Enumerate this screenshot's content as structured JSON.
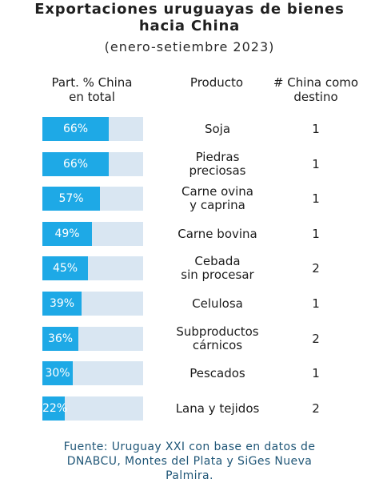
{
  "title_line1": "Exportaciones uruguayas de bienes",
  "title_line2": "hacia China",
  "subtitle": "(enero-setiembre 2023)",
  "headers": {
    "share_line1": "Part. % China",
    "share_line2": "en total",
    "product": "Producto",
    "count_line1": "# China como",
    "count_line2": "destino"
  },
  "colors": {
    "bar_fill": "#1ea9e6",
    "bar_track": "#d9e6f2",
    "source_text": "#1f5677"
  },
  "chart_data": {
    "type": "bar",
    "orientation": "horizontal",
    "xlim": [
      0,
      100
    ],
    "rows": [
      {
        "pct": 66,
        "pct_label": "66%",
        "product": [
          "Soja"
        ],
        "rank": "1"
      },
      {
        "pct": 66,
        "pct_label": "66%",
        "product": [
          "Piedras",
          "preciosas"
        ],
        "rank": "1"
      },
      {
        "pct": 57,
        "pct_label": "57%",
        "product": [
          "Carne ovina",
          "y caprina"
        ],
        "rank": "1"
      },
      {
        "pct": 49,
        "pct_label": "49%",
        "product": [
          "Carne bovina"
        ],
        "rank": "1"
      },
      {
        "pct": 45,
        "pct_label": "45%",
        "product": [
          "Cebada",
          "sin procesar"
        ],
        "rank": "2"
      },
      {
        "pct": 39,
        "pct_label": "39%",
        "product": [
          "Celulosa"
        ],
        "rank": "1"
      },
      {
        "pct": 36,
        "pct_label": "36%",
        "product": [
          "Subproductos",
          "cárnicos"
        ],
        "rank": "2"
      },
      {
        "pct": 30,
        "pct_label": "30%",
        "product": [
          "Pescados"
        ],
        "rank": "1"
      },
      {
        "pct": 22,
        "pct_label": "22%",
        "product": [
          "Lana y tejidos"
        ],
        "rank": "2"
      }
    ]
  },
  "source_line1": "Fuente: Uruguay XXI con base en datos de",
  "source_line2": "DNABCU, Montes del Plata y SiGes Nueva",
  "source_line3": "Palmira."
}
